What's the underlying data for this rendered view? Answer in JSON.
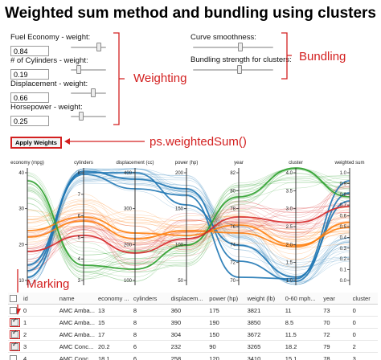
{
  "title": "Weighted sum method and bundling using clusters",
  "weighting": {
    "fields": [
      {
        "label": "Fuel Economy - weight:",
        "value": "0.84",
        "level": 0.84
      },
      {
        "label": "# of Cylinders - weight:",
        "value": "0.19",
        "level": 0.19
      },
      {
        "label": "Displacement - weight:",
        "value": "0.66",
        "level": 0.66
      },
      {
        "label": "Horsepower - weight:",
        "value": "0.25",
        "level": 0.25
      }
    ],
    "annotation": "Weighting"
  },
  "bundling": {
    "curve_label": "Curve smoothness:",
    "curve_level": 0.6,
    "strength_label": "Bundling strength for clusters:",
    "strength_level": 0.58,
    "annotation": "Bundling"
  },
  "apply_button": "Apply Weights",
  "apply_annotation": "ps.weightedSum()",
  "marking_annotation": "Marking",
  "axes": [
    {
      "name": "economy (mpg)",
      "ticks": [
        "40",
        "30",
        "20",
        "10"
      ]
    },
    {
      "name": "cylinders",
      "ticks": [
        "8",
        "7",
        "6",
        "5",
        "4",
        "3"
      ]
    },
    {
      "name": "displacement (cc)",
      "ticks": [
        "400",
        "300",
        "200",
        "100"
      ]
    },
    {
      "name": "power (hp)",
      "ticks": [
        "200",
        "150",
        "100",
        "50"
      ]
    },
    {
      "name": "year",
      "ticks": [
        "82",
        "80",
        "78",
        "76",
        "74",
        "72",
        "70"
      ]
    },
    {
      "name": "cluster",
      "ticks": [
        "4.0",
        "3.5",
        "3.0",
        "2.5",
        "2.0",
        "1.5",
        "1.0"
      ]
    },
    {
      "name": "weighted sum",
      "ticks": [
        "1.0",
        "0.9",
        "0.8",
        "0.7",
        "0.6",
        "0.5",
        "0.4",
        "0.3",
        "0.2",
        "0.1",
        "0.0"
      ]
    }
  ],
  "colors": {
    "blue": "#1f77b4",
    "orange": "#ff7f0e",
    "green": "#2ca02c",
    "red": "#d62728",
    "annotation": "#d32020"
  },
  "table": {
    "headers": [
      "id",
      "name",
      "economy ...",
      "cylinders",
      "displacem...",
      "power (hp)",
      "weight (lb)",
      "0-60 mph...",
      "year",
      "cluster"
    ],
    "rows": [
      {
        "checked": false,
        "cells": [
          "0",
          "AMC Amba...",
          "13",
          "8",
          "360",
          "175",
          "3821",
          "11",
          "73",
          "0"
        ]
      },
      {
        "checked": true,
        "cells": [
          "1",
          "AMC Amba...",
          "15",
          "8",
          "390",
          "190",
          "3850",
          "8.5",
          "70",
          "0"
        ]
      },
      {
        "checked": true,
        "cells": [
          "2",
          "AMC Amba...",
          "17",
          "8",
          "304",
          "150",
          "3672",
          "11.5",
          "72",
          "0"
        ]
      },
      {
        "checked": true,
        "cells": [
          "3",
          "AMC Conc...",
          "20.2",
          "6",
          "232",
          "90",
          "3265",
          "18.2",
          "79",
          "2"
        ]
      },
      {
        "checked": false,
        "cells": [
          "4",
          "AMC Conc...",
          "18.1",
          "6",
          "258",
          "120",
          "3410",
          "15.1",
          "78",
          "3"
        ]
      }
    ]
  }
}
